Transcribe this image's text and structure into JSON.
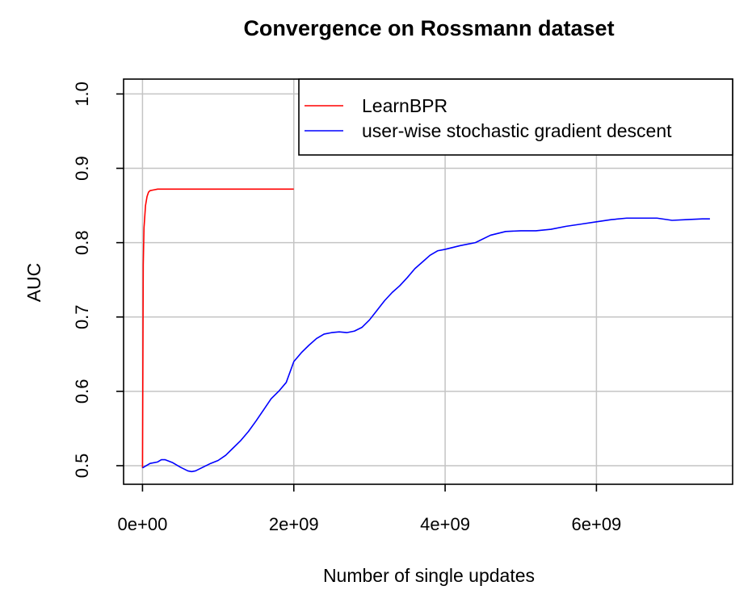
{
  "chart_data": {
    "type": "line",
    "title": "Convergence on Rossmann dataset",
    "xlabel": "Number of single updates",
    "ylabel": "AUC",
    "xlim": [
      -250000000,
      7800000000
    ],
    "ylim": [
      0.475,
      1.02
    ],
    "x_ticks": [
      0,
      2000000000,
      4000000000,
      6000000000
    ],
    "x_tick_labels": [
      "0e+00",
      "2e+09",
      "4e+09",
      "6e+09"
    ],
    "y_ticks": [
      0.5,
      0.6,
      0.7,
      0.8,
      0.9,
      1.0
    ],
    "y_tick_labels": [
      "0.5",
      "0.6",
      "0.7",
      "0.8",
      "0.9",
      "1.0"
    ],
    "grid": true,
    "legend_position": "top-right",
    "series": [
      {
        "name": "LearnBPR",
        "color": "#ff0000",
        "x": [
          0,
          10000000,
          20000000,
          40000000,
          60000000,
          80000000,
          100000000,
          150000000,
          200000000,
          300000000,
          500000000,
          800000000,
          1000000000,
          1200000000,
          1400000000,
          1600000000,
          1800000000,
          2000000000
        ],
        "y": [
          0.497,
          0.77,
          0.82,
          0.85,
          0.862,
          0.868,
          0.87,
          0.871,
          0.872,
          0.872,
          0.872,
          0.872,
          0.872,
          0.872,
          0.872,
          0.872,
          0.872,
          0.872
        ]
      },
      {
        "name": "user-wise stochastic gradient descent",
        "color": "#0000ff",
        "x": [
          0,
          100000000,
          200000000,
          250000000,
          300000000,
          400000000,
          500000000,
          600000000,
          650000000,
          700000000,
          800000000,
          900000000,
          1000000000,
          1100000000,
          1200000000,
          1300000000,
          1400000000,
          1500000000,
          1600000000,
          1700000000,
          1800000000,
          1900000000,
          2000000000,
          2100000000,
          2200000000,
          2300000000,
          2400000000,
          2500000000,
          2600000000,
          2700000000,
          2800000000,
          2900000000,
          3000000000,
          3100000000,
          3200000000,
          3300000000,
          3400000000,
          3500000000,
          3600000000,
          3700000000,
          3800000000,
          3900000000,
          4000000000,
          4200000000,
          4400000000,
          4600000000,
          4800000000,
          5000000000,
          5200000000,
          5400000000,
          5600000000,
          5800000000,
          6000000000,
          6200000000,
          6400000000,
          6600000000,
          6800000000,
          7000000000,
          7200000000,
          7400000000,
          7500000000
        ],
        "y": [
          0.497,
          0.503,
          0.505,
          0.508,
          0.508,
          0.504,
          0.498,
          0.493,
          0.492,
          0.493,
          0.498,
          0.503,
          0.507,
          0.514,
          0.524,
          0.534,
          0.546,
          0.56,
          0.575,
          0.59,
          0.6,
          0.612,
          0.64,
          0.652,
          0.662,
          0.671,
          0.677,
          0.679,
          0.68,
          0.679,
          0.681,
          0.686,
          0.696,
          0.709,
          0.722,
          0.733,
          0.742,
          0.753,
          0.765,
          0.774,
          0.783,
          0.789,
          0.791,
          0.796,
          0.8,
          0.81,
          0.815,
          0.816,
          0.816,
          0.818,
          0.822,
          0.825,
          0.828,
          0.831,
          0.833,
          0.833,
          0.833,
          0.83,
          0.831,
          0.832,
          0.832
        ]
      }
    ]
  }
}
